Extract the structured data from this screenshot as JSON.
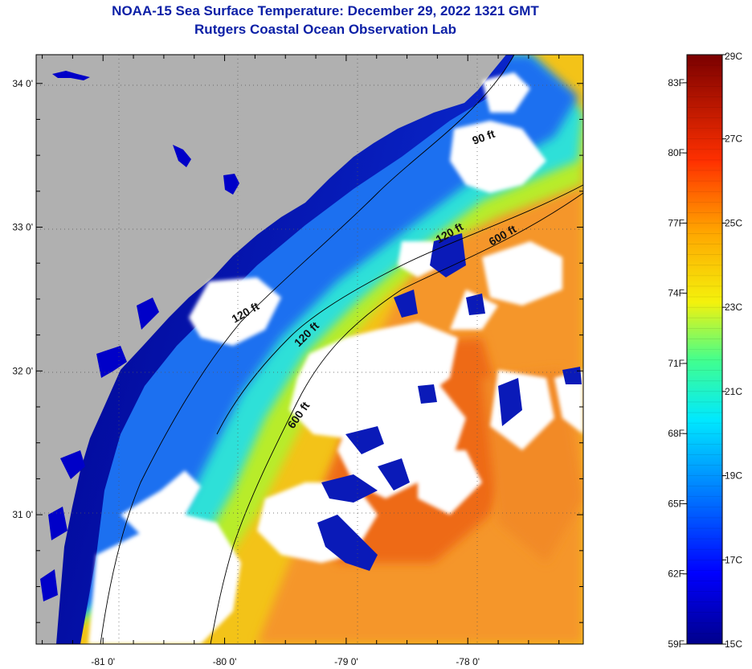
{
  "title_line1": "NOAA-15 Sea Surface Temperature:  December 29, 2022 1321 GMT",
  "title_line2": "Rutgers Coastal Ocean Observation Lab",
  "lat_ticks": [
    {
      "label": "34 0'",
      "value": 34.0
    },
    {
      "label": "33 0'",
      "value": 33.0
    },
    {
      "label": "32 0'",
      "value": 32.0
    },
    {
      "label": "31 0'",
      "value": 31.0
    }
  ],
  "lon_ticks": [
    {
      "label": "-81 0'",
      "value": -81.0
    },
    {
      "label": "-80 0'",
      "value": -80.0
    },
    {
      "label": "-79 0'",
      "value": -79.0
    },
    {
      "label": "-78 0'",
      "value": -78.0
    }
  ],
  "map_extent": {
    "lon_min": -81.55,
    "lon_max": -77.05,
    "lat_min": 30.1,
    "lat_max": 34.2
  },
  "isobath_labels": [
    "120 ft",
    "600 ft",
    "120 ft",
    "600 ft",
    "120 ft",
    "90 ft"
  ],
  "colorbar": {
    "celsius_labels": [
      "29C",
      "27C",
      "25C",
      "23C",
      "21C",
      "19C",
      "17C",
      "15C"
    ],
    "fahrenheit_labels": [
      "83F",
      "80F",
      "77F",
      "74F",
      "71F",
      "68F",
      "65F",
      "62F",
      "59F"
    ],
    "min_c": 15,
    "max_c": 29
  },
  "colors": {
    "title": "#0b1fa6",
    "land": "#b0b0b0",
    "cloud": "#ffffff",
    "cold": "#00008c",
    "warm": "#ef6a10"
  }
}
